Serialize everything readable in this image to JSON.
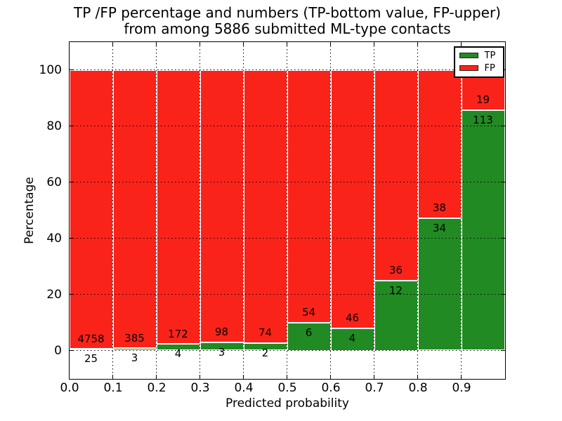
{
  "chart_data": {
    "type": "bar",
    "subtype": "stacked-percentage",
    "title_line1": "TP /FP percentage and numbers (TP-bottom value, FP-upper)",
    "title_line2": "from among 5886 submitted ML-type contacts",
    "total_submitted": 5886,
    "xlabel": "Predicted probability",
    "ylabel": "Percentage",
    "xlim": [
      0.0,
      1.0
    ],
    "ylim": [
      -10,
      110
    ],
    "x_tick_labels": [
      "0.0",
      "0.1",
      "0.2",
      "0.3",
      "0.4",
      "0.5",
      "0.6",
      "0.7",
      "0.8",
      "0.9"
    ],
    "y_tick_values": [
      0,
      20,
      40,
      60,
      80,
      100
    ],
    "y_tick_labels": [
      "0",
      "20",
      "40",
      "60",
      "80",
      "100"
    ],
    "grid": {
      "style": "dotted",
      "color": "#000000"
    },
    "categories": [
      "0.0-0.1",
      "0.1-0.2",
      "0.2-0.3",
      "0.3-0.4",
      "0.4-0.5",
      "0.5-0.6",
      "0.6-0.7",
      "0.7-0.8",
      "0.8-0.9",
      "0.9-1.0"
    ],
    "series": [
      {
        "name": "TP",
        "color": "#228a22",
        "counts": [
          25,
          3,
          4,
          3,
          2,
          6,
          4,
          12,
          34,
          113
        ],
        "percent_of_bin": [
          0.52,
          0.77,
          2.27,
          2.97,
          2.63,
          10.0,
          8.0,
          25.0,
          47.22,
          85.61
        ]
      },
      {
        "name": "FP",
        "color": "#fa231a",
        "counts": [
          4758,
          385,
          172,
          98,
          74,
          54,
          46,
          36,
          38,
          19
        ]
      }
    ],
    "legend": {
      "position": "upper-right",
      "entries": [
        {
          "label": "TP",
          "color": "#228a22"
        },
        {
          "label": "FP",
          "color": "#fa231a"
        }
      ]
    }
  }
}
